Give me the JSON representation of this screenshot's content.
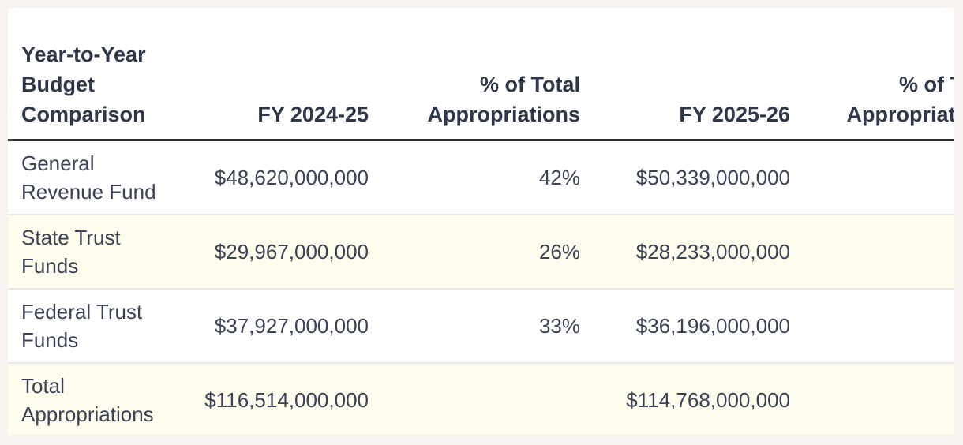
{
  "chart_data": {
    "type": "table",
    "title": "Year-to-Year Budget Comparison",
    "columns": [
      "Year-to-Year Budget Comparison",
      "FY 2024-25",
      "% of Total Appropriations",
      "FY 2025-26",
      "% of Total Appropriations"
    ],
    "rows": [
      {
        "cells": [
          "General Revenue Fund",
          "$48,620,000,000",
          "42%",
          "$50,339,000,000",
          ""
        ]
      },
      {
        "cells": [
          "State Trust Funds",
          "$29,967,000,000",
          "26%",
          "$28,233,000,000",
          ""
        ]
      },
      {
        "cells": [
          "Federal Trust Funds",
          "$37,927,000,000",
          "33%",
          "$36,196,000,000",
          ""
        ]
      },
      {
        "cells": [
          "Total Appropriations",
          "$116,514,000,000",
          "",
          "$114,768,000,000",
          ""
        ]
      }
    ],
    "notes": {
      "last_column_clipped": "rightmost column is cut off at the viewport edge; its cell values are not visible",
      "row_striping": "rows 2 and 4 have cream background"
    }
  },
  "colors": {
    "page_background": "#f8f3f0",
    "card_background": "#ffffff",
    "stripe_row": "#fefcec",
    "header_text": "#2f374b",
    "body_text": "#3b4256",
    "header_rule": "#333333",
    "row_separator": "#e8e8e5"
  }
}
